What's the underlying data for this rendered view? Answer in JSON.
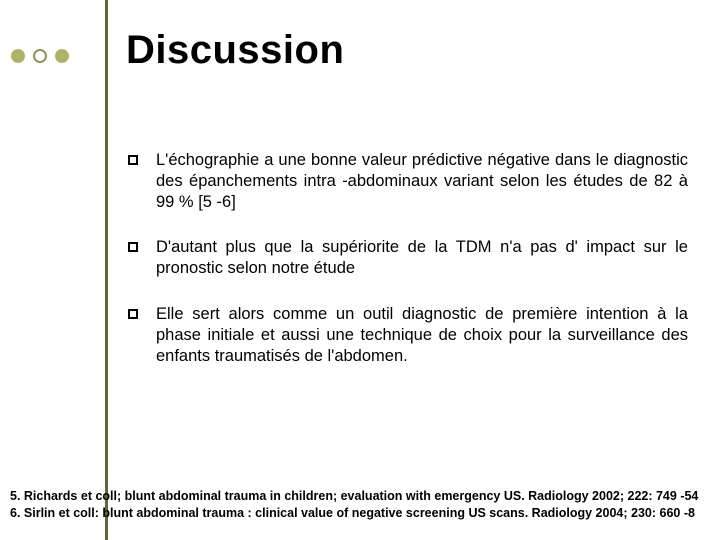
{
  "title": "Discussion",
  "accent_line_color": "#666633",
  "dots": [
    {
      "border": "#b2b266",
      "fill": "#b2b266"
    },
    {
      "border": "#94945a",
      "fill": "#ffffff"
    },
    {
      "border": "#b2b266",
      "fill": "#b2b266"
    }
  ],
  "bullet_square": {
    "border": "#000000",
    "fill": "transparent",
    "size": 10,
    "border_width": 2
  },
  "body_fontsize": 16.5,
  "items": [
    "L'échographie a une bonne valeur prédictive négative dans le diagnostic des épanchements intra -abdominaux variant selon les études de 82 à 99 % [5 -6]",
    "D'autant plus que la supériorite de la TDM  n'a pas d' impact sur le pronostic selon notre étude",
    "Elle sert alors comme un outil diagnostic de première intention à la phase initiale et aussi une technique de choix pour la surveillance des enfants traumatisés de l'abdomen."
  ],
  "references": [
    "5. Richards et coll; blunt abdominal trauma in children; evaluation with emergency US. Radiology 2002; 222: 749 -54",
    "6. Sirlin et coll: blunt abdominal trauma : clinical value of negative screening US scans. Radiology 2004; 230: 660 -8"
  ]
}
